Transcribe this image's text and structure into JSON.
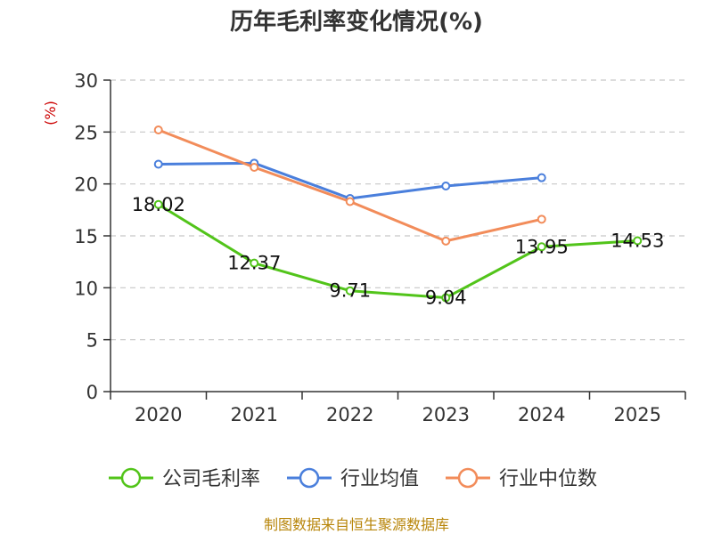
{
  "chart_data": {
    "type": "line",
    "title": "历年毛利率变化情况(%)",
    "ylabel": "(%)",
    "categories": [
      "2020",
      "2021",
      "2022",
      "2023",
      "2024",
      "2025"
    ],
    "ylim": [
      0,
      30
    ],
    "yticks": [
      0,
      5,
      10,
      15,
      20,
      25,
      30
    ],
    "grid": true,
    "legend_position": "bottom",
    "series": [
      {
        "name": "公司毛利率",
        "color": "#52c41a",
        "values": [
          18.02,
          12.37,
          9.71,
          9.04,
          13.95,
          14.53
        ],
        "labels": [
          "18.02",
          "12.37",
          "9.71",
          "9.04",
          "13.95",
          "14.53"
        ]
      },
      {
        "name": "行业均值",
        "color": "#4a7fdc",
        "values": [
          21.9,
          22.0,
          18.6,
          19.8,
          20.6,
          null
        ]
      },
      {
        "name": "行业中位数",
        "color": "#f28c5a",
        "values": [
          25.2,
          21.6,
          18.3,
          14.5,
          16.6,
          null
        ]
      }
    ]
  },
  "source": "制图数据来自恒生聚源数据库"
}
